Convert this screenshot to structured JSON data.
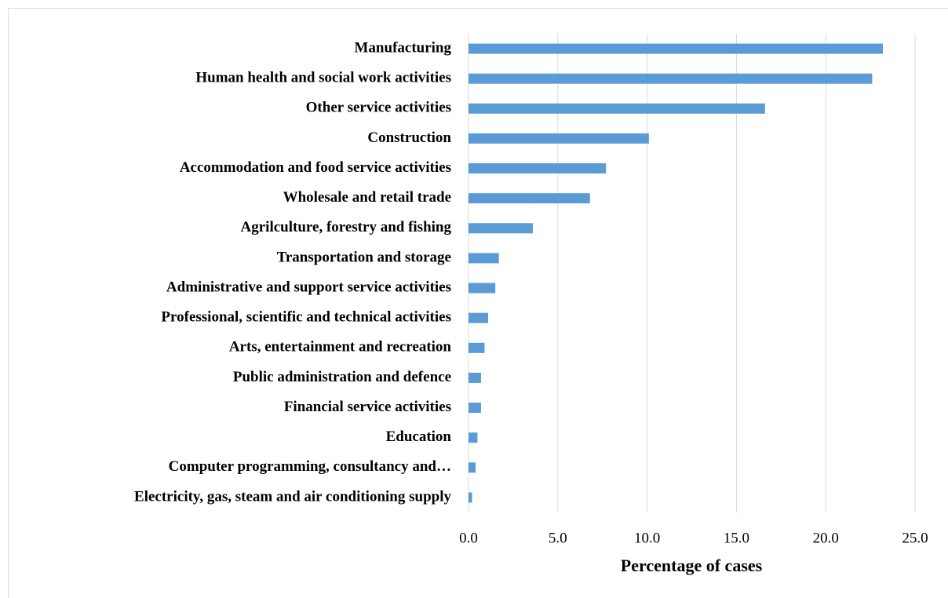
{
  "chart_data": {
    "type": "hbar",
    "x_label": "Percentage of cases",
    "categories": [
      "Manufacturing ",
      "Human health and social work activities",
      "Other service activities",
      "Construction",
      "Accommodation and food service activities",
      "Wholesale and retail trade",
      "Agrilculture, forestry and fishing ",
      "Transportation and storage",
      "Administrative and support service activities ",
      "Professional, scientific and technical activities",
      "Arts, entertainment and recreation ",
      "Public administration and defence",
      "Financial service activities",
      "Education",
      "Computer programming, consultancy and…",
      "Electricity, gas, steam and air conditioning supply"
    ],
    "values": [
      23.2,
      22.6,
      16.6,
      10.1,
      7.7,
      6.8,
      3.6,
      1.7,
      1.5,
      1.1,
      0.9,
      0.7,
      0.7,
      0.5,
      0.4,
      0.2
    ],
    "color": "#5b9bd5",
    "xlim": [
      0,
      25
    ],
    "xticks": [
      {
        "value": 0,
        "label": "0.0"
      },
      {
        "value": 5,
        "label": "5.0"
      },
      {
        "value": 10,
        "label": "10.0"
      },
      {
        "value": 15,
        "label": "15.0"
      },
      {
        "value": 20,
        "label": "20.0"
      },
      {
        "value": 25,
        "label": "25.0"
      }
    ],
    "grid": true
  }
}
